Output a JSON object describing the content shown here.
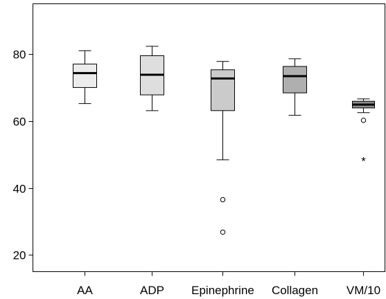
{
  "chart_data": {
    "type": "boxplot",
    "title": "",
    "xlabel": "",
    "ylabel": "",
    "ylim": [
      15,
      95
    ],
    "yticks": [
      20,
      40,
      60,
      80
    ],
    "categories": [
      "AA",
      "ADP",
      "Epinephrine",
      "Collagen",
      "VM/10"
    ],
    "boxes": [
      {
        "category": "AA",
        "whisker_low": 65.2,
        "q1": 70.0,
        "median": 74.3,
        "q3": 77.0,
        "whisker_high": 81.0,
        "fill": "#ececec",
        "outliers": [],
        "extremes": []
      },
      {
        "category": "ADP",
        "whisker_low": 63.1,
        "q1": 67.8,
        "median": 73.8,
        "q3": 79.5,
        "whisker_high": 82.3,
        "fill": "#dedede",
        "outliers": [],
        "extremes": []
      },
      {
        "category": "Epinephrine",
        "whisker_low": 48.4,
        "q1": 63.1,
        "median": 72.7,
        "q3": 75.3,
        "whisker_high": 77.8,
        "fill": "#cbcbcb",
        "outliers": [
          36.5,
          26.8
        ],
        "extremes": []
      },
      {
        "category": "Collagen",
        "whisker_low": 61.7,
        "q1": 68.4,
        "median": 73.4,
        "q3": 76.3,
        "whisker_high": 78.6,
        "fill": "#afafaf",
        "outliers": [],
        "extremes": []
      },
      {
        "category": "VM/10",
        "whisker_low": 62.5,
        "q1": 63.9,
        "median": 64.9,
        "q3": 65.9,
        "whisker_high": 66.6,
        "fill": "#8e8e8e",
        "outliers": [
          60.2
        ],
        "extremes": [
          48.3
        ]
      }
    ],
    "grid": false,
    "legend": "none"
  }
}
